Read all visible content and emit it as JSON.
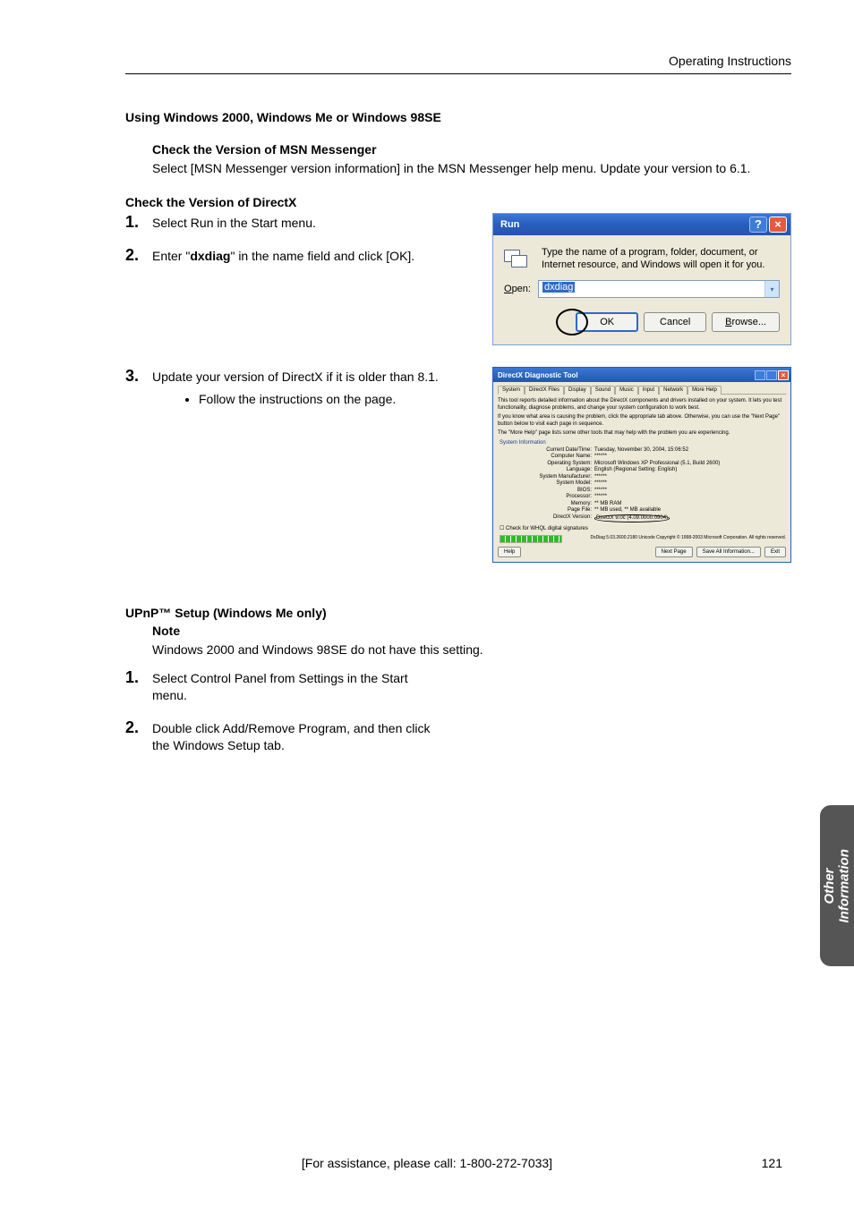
{
  "header": "Operating Instructions",
  "section1": {
    "title": "Using Windows 2000, Windows Me or Windows 98SE",
    "msn_h": "Check the Version of MSN Messenger",
    "msn_p": "Select [MSN Messenger version information] in the MSN Messenger help menu. Update your version to 6.1.",
    "dx_h": "Check the Version of DirectX",
    "steps": {
      "s1": "Select Run in the Start menu.",
      "s2_pre": "Enter \"",
      "s2_bold": "dxdiag",
      "s2_post": "\" in the name field and click [OK].",
      "s3": "Update your version of DirectX if it is older than 8.1.",
      "s3_b": "Follow the instructions on the page."
    }
  },
  "run": {
    "title": "Run",
    "desc": "Type the name of a program, folder, document, or Internet resource, and Windows will open it for you.",
    "open_label": "Open:",
    "open_u": "O",
    "open_rest": "pen:",
    "value": "dxdiag",
    "ok": "OK",
    "cancel": "Cancel",
    "browse": "Browse...",
    "browse_u": "B",
    "browse_rest": "rowse..."
  },
  "dx": {
    "title": "DirectX Diagnostic Tool",
    "tabs": [
      "System",
      "DirectX Files",
      "Display",
      "Sound",
      "Music",
      "Input",
      "Network",
      "More Help"
    ],
    "intro1": "This tool reports detailed information about the DirectX components and drivers installed on your system. It lets you test functionality, diagnose problems, and change your system configuration to work best.",
    "intro2": "If you know what area is causing the problem, click the appropriate tab above. Otherwise, you can use the \"Next Page\" button below to visit each page in sequence.",
    "intro3": "The \"More Help\" page lists some other tools that may help with the problem you are experiencing.",
    "sysinfo_h": "System Information",
    "rows": [
      {
        "k": "Current Date/Time:",
        "v": "Tuesday, November 30, 2004, 15:06:52"
      },
      {
        "k": "Computer Name:",
        "v": "******"
      },
      {
        "k": "Operating System:",
        "v": "Microsoft Windows XP Professional (5.1, Build 2600)"
      },
      {
        "k": "Language:",
        "v": "English (Regional Setting: English)"
      },
      {
        "k": "System Manufacturer:",
        "v": "******"
      },
      {
        "k": "System Model:",
        "v": "******"
      },
      {
        "k": "BIOS:",
        "v": "******"
      },
      {
        "k": "Processor:",
        "v": "******"
      },
      {
        "k": "Memory:",
        "v": "** MB RAM"
      },
      {
        "k": "Page File:",
        "v": "** MB used, ** MB available"
      },
      {
        "k": "DirectX Version:",
        "v": "DirectX 9.0c (4.09.0000.0904)"
      }
    ],
    "check": "Check for WHQL digital signatures",
    "copy": "DxDiag 5.03.2600.2180 Unicode  Copyright © 1998-2003 Microsoft Corporation. All rights reserved.",
    "btns": {
      "help": "Help",
      "next": "Next Page",
      "save": "Save All Information...",
      "exit": "Exit"
    }
  },
  "section2": {
    "title": "UPnP™ Setup (Windows Me only)",
    "note_h": "Note",
    "note_p": "Windows 2000 and Windows 98SE do not have this setting.",
    "s1": "Select Control Panel from Settings in the Start menu.",
    "s2": "Double click Add/Remove Program, and then click the Windows Setup tab."
  },
  "side": {
    "l1": "Other",
    "l2": "Information"
  },
  "footer": "[For assistance, please call: 1-800-272-7033]",
  "page_num": "121",
  "colors": {
    "xp_blue": "#2a5ebd",
    "xp_gradient_top": "#3a78d6",
    "xp_close_red": "#e35a3f",
    "xp_face": "#ece9d8",
    "selection": "#316ac5",
    "side_tab": "#555555"
  }
}
